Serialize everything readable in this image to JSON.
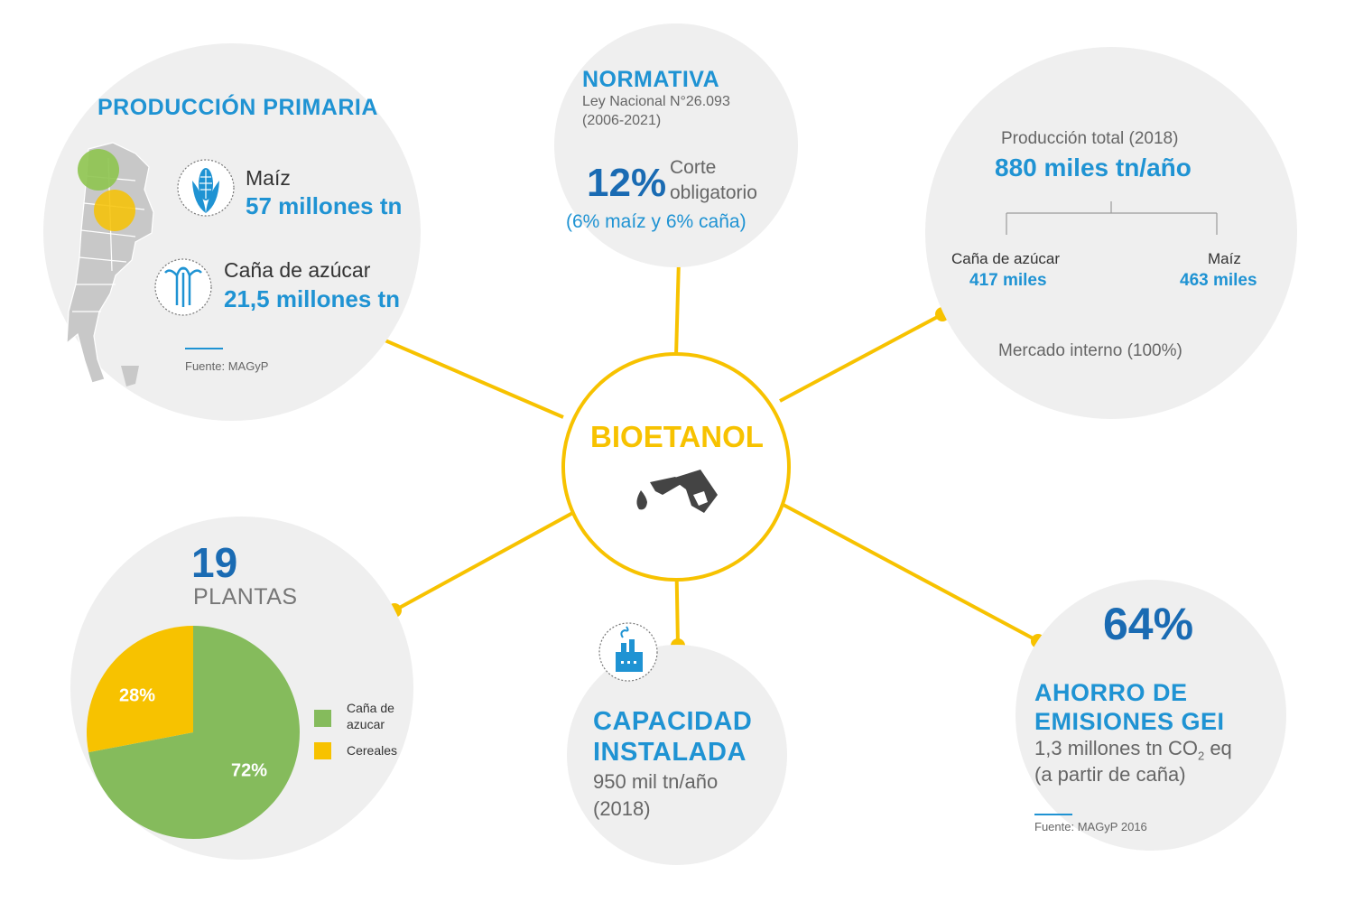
{
  "center": {
    "title": "BIOETANOL",
    "icon": "fuel-nozzle-icon"
  },
  "produccion": {
    "title": "PRODUCCIÓN PRIMARIA",
    "maiz": {
      "label": "Maíz",
      "value": "57 millones tn",
      "icon": "corn-icon"
    },
    "cana": {
      "label": "Caña de azúcar",
      "value": "21,5 millones tn",
      "icon": "sugarcane-icon"
    },
    "source": "Fuente: MAGyP",
    "map_icon": "argentina-map-icon"
  },
  "normativa": {
    "title": "NORMATIVA",
    "law_line1": "Ley Nacional N°26.093",
    "law_line2": "(2006-2021)",
    "percent": "12%",
    "corte_line1": "Corte",
    "corte_line2": "obligatorio",
    "detail": "(6% maíz y 6% caña)"
  },
  "produccion_total": {
    "label": "Producción total (2018)",
    "value": "880 miles tn/año",
    "cana_label": "Caña de azúcar",
    "cana_value": "417 miles",
    "maiz_label": "Maíz",
    "maiz_value": "463 miles",
    "mercado": "Mercado interno (100%)"
  },
  "plantas": {
    "number": "19",
    "label": "PLANTAS",
    "legend": [
      {
        "label_line1": "Caña de",
        "label_line2": "azucar",
        "color": "#85bb5c"
      },
      {
        "label_line1": "Cereales",
        "label_line2": "",
        "color": "#f7c200"
      }
    ]
  },
  "chart_data": {
    "type": "pie",
    "categories": [
      "Caña de azucar",
      "Cereales"
    ],
    "values": [
      72,
      28
    ],
    "labels": [
      "72%",
      "28%"
    ],
    "colors": [
      "#85bb5c",
      "#f7c200"
    ]
  },
  "capacidad": {
    "title_line1": "CAPACIDAD",
    "title_line2": "INSTALADA",
    "value": "950 mil tn/año",
    "year": "(2018)",
    "icon": "factory-icon"
  },
  "ahorro": {
    "percent": "64%",
    "title_line1": "AHORRO DE",
    "title_line2": "EMISIONES GEI",
    "detail_pre": "1,3 millones tn CO",
    "detail_sub": "2",
    "detail_post": " eq",
    "detail_line2": "(a partir de caña)",
    "source": "Fuente: MAGyP 2016"
  },
  "colors": {
    "accent": "#f7c200",
    "blue": "#1f93d3",
    "dark_blue": "#1a6bb3",
    "bubble": "#efefef"
  }
}
